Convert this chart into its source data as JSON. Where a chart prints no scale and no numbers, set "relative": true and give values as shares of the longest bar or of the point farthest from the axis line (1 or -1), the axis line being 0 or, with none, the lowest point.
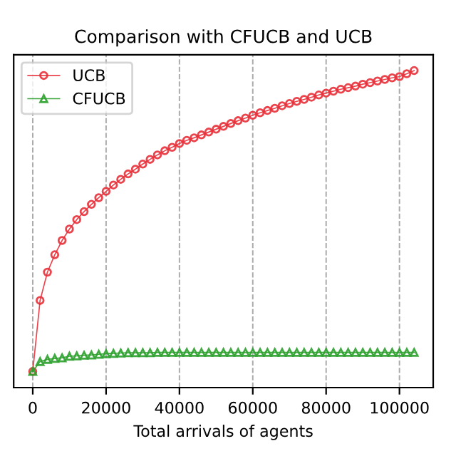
{
  "chart_data": {
    "type": "line",
    "title": "Comparison with CFUCB and UCB",
    "xlabel": "Total arrivals of agents",
    "relative": true,
    "x": [
      0,
      2000,
      4000,
      6000,
      8000,
      10000,
      12000,
      14000,
      16000,
      18000,
      20000,
      22000,
      24000,
      26000,
      28000,
      30000,
      32000,
      34000,
      36000,
      38000,
      40000,
      42000,
      44000,
      46000,
      48000,
      50000,
      52000,
      54000,
      56000,
      58000,
      60000,
      62000,
      64000,
      66000,
      68000,
      70000,
      72000,
      74000,
      76000,
      78000,
      80000,
      82000,
      84000,
      86000,
      88000,
      90000,
      92000,
      94000,
      96000,
      98000,
      100000,
      102000,
      104000
    ],
    "xlim": [
      -5200,
      109200
    ],
    "xticks": [
      0,
      20000,
      40000,
      60000,
      80000,
      100000
    ],
    "series": [
      {
        "name": "UCB",
        "color": "#e8303a",
        "marker": "circle",
        "values": [
          0.051,
          0.275,
          0.364,
          0.419,
          0.464,
          0.5,
          0.53,
          0.555,
          0.578,
          0.599,
          0.619,
          0.639,
          0.657,
          0.674,
          0.689,
          0.705,
          0.72,
          0.734,
          0.747,
          0.758,
          0.77,
          0.78,
          0.788,
          0.797,
          0.806,
          0.815,
          0.824,
          0.833,
          0.842,
          0.85,
          0.859,
          0.867,
          0.874,
          0.881,
          0.889,
          0.896,
          0.903,
          0.909,
          0.916,
          0.923,
          0.929,
          0.935,
          0.941,
          0.946,
          0.951,
          0.957,
          0.962,
          0.967,
          0.972,
          0.977,
          0.981,
          0.99,
          1.0
        ]
      },
      {
        "name": "CFUCB",
        "color": "#2ca02c",
        "marker": "triangle",
        "values": [
          0.051,
          0.082,
          0.089,
          0.092,
          0.094,
          0.099,
          0.1,
          0.102,
          0.103,
          0.105,
          0.107,
          0.108,
          0.109,
          0.11,
          0.11,
          0.11,
          0.11,
          0.111,
          0.111,
          0.111,
          0.111,
          0.111,
          0.111,
          0.111,
          0.111,
          0.111,
          0.111,
          0.111,
          0.111,
          0.111,
          0.111,
          0.111,
          0.111,
          0.111,
          0.111,
          0.111,
          0.111,
          0.111,
          0.111,
          0.111,
          0.111,
          0.111,
          0.111,
          0.111,
          0.111,
          0.111,
          0.111,
          0.111,
          0.111,
          0.111,
          0.111,
          0.111,
          0.111
        ]
      }
    ],
    "grid": "x",
    "line_style": "solid",
    "legend": "top left"
  }
}
